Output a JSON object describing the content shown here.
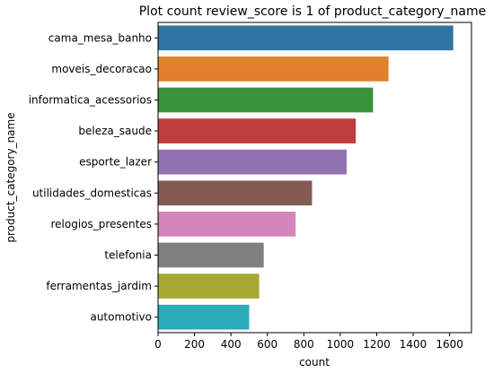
{
  "chart_data": {
    "type": "bar",
    "orientation": "horizontal",
    "title": "Plot count review_score is 1 of product_category_name",
    "xlabel": "count",
    "ylabel": "product_category_name",
    "categories": [
      "cama_mesa_banho",
      "moveis_decoracao",
      "informatica_acessorios",
      "beleza_saude",
      "esporte_lazer",
      "utilidades_domesticas",
      "relogios_presentes",
      "telefonia",
      "ferramentas_jardim",
      "automotivo"
    ],
    "values": [
      1620,
      1265,
      1180,
      1085,
      1035,
      845,
      755,
      580,
      555,
      500
    ],
    "colors": [
      "#3274a1",
      "#e1812c",
      "#3a923a",
      "#c03d3e",
      "#9372b2",
      "#845b53",
      "#d684bd",
      "#7f7f7f",
      "#a9aa35",
      "#2eabb8"
    ],
    "xlim": [
      0,
      1720
    ],
    "xticks": [
      0,
      200,
      400,
      600,
      800,
      1000,
      1200,
      1400,
      1600
    ],
    "grid": false,
    "legend": "none"
  }
}
